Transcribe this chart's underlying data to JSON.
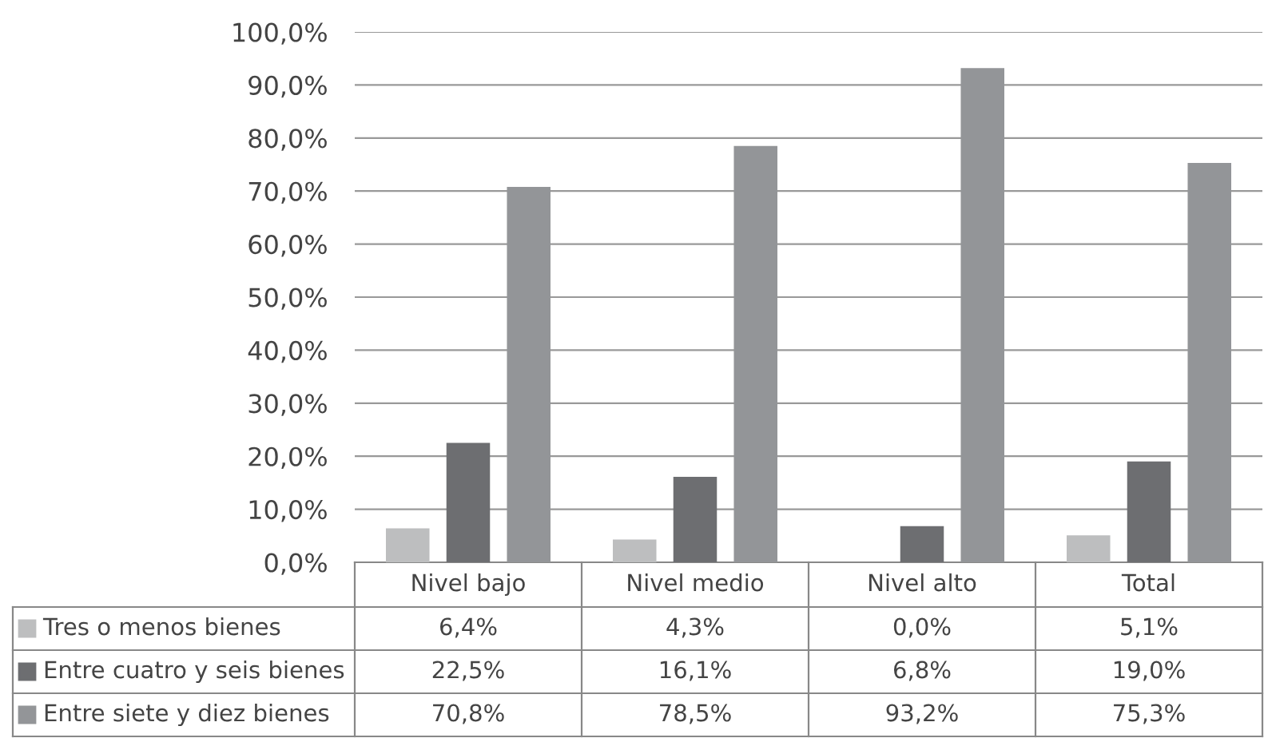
{
  "chart_data": {
    "type": "bar",
    "categories": [
      "Nivel bajo",
      "Nivel medio",
      "Nivel alto",
      "Total"
    ],
    "series": [
      {
        "name": "Tres o menos bienes",
        "color": "#bdbebf",
        "values": [
          6.4,
          4.3,
          0.0,
          5.1
        ],
        "value_labels": [
          "6,4%",
          "4,3%",
          "0,0%",
          "5,1%"
        ]
      },
      {
        "name": "Entre cuatro y seis bienes",
        "color": "#6d6e71",
        "values": [
          22.5,
          16.1,
          6.8,
          19.0
        ],
        "value_labels": [
          "22,5%",
          "16,1%",
          "6,8%",
          "19,0%"
        ]
      },
      {
        "name": "Entre siete y diez bienes",
        "color": "#939598",
        "values": [
          70.8,
          78.5,
          93.2,
          75.3
        ],
        "value_labels": [
          "70,8%",
          "78,5%",
          "93,2%",
          "75,3%"
        ]
      }
    ],
    "ylim": [
      0,
      100
    ],
    "yticks": [
      {
        "value": 0,
        "label": "0,0%"
      },
      {
        "value": 10,
        "label": "10,0%"
      },
      {
        "value": 20,
        "label": "20,0%"
      },
      {
        "value": 30,
        "label": "30,0%"
      },
      {
        "value": 40,
        "label": "40,0%"
      },
      {
        "value": 50,
        "label": "50,0%"
      },
      {
        "value": 60,
        "label": "60,0%"
      },
      {
        "value": 70,
        "label": "70,0%"
      },
      {
        "value": 80,
        "label": "80,0%"
      },
      {
        "value": 90,
        "label": "90,0%"
      },
      {
        "value": 100,
        "label": "100,0%"
      }
    ],
    "grid": "y",
    "legend": "bottom"
  }
}
